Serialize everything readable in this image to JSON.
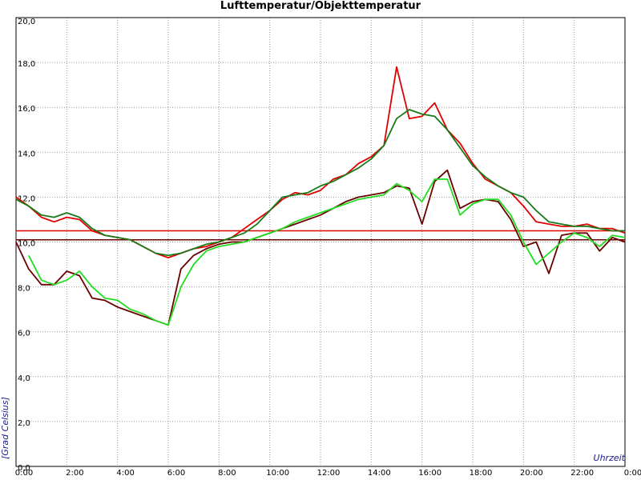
{
  "chart_data": {
    "type": "line",
    "title": "Lufttemperatur/Objekttemperatur",
    "y_label": "[Grad Celsius]",
    "x_label": "Uhrzeit",
    "xlim": [
      0,
      24
    ],
    "ylim": [
      0,
      20
    ],
    "grid": true,
    "xticks": [
      {
        "value": 0,
        "label": "0:00"
      },
      {
        "value": 2,
        "label": "2:00"
      },
      {
        "value": 4,
        "label": "4:00"
      },
      {
        "value": 6,
        "label": "6:00"
      },
      {
        "value": 8,
        "label": "8:00"
      },
      {
        "value": 10,
        "label": "10:00"
      },
      {
        "value": 12,
        "label": "12:00"
      },
      {
        "value": 14,
        "label": "14:00"
      },
      {
        "value": 16,
        "label": "16:00"
      },
      {
        "value": 18,
        "label": "18:00"
      },
      {
        "value": 20,
        "label": "20:00"
      },
      {
        "value": 22,
        "label": "22:00"
      },
      {
        "value": 24,
        "label": "0:00"
      }
    ],
    "yticks": [
      {
        "value": 0,
        "label": "0,0"
      },
      {
        "value": 2,
        "label": "2,0"
      },
      {
        "value": 4,
        "label": "4,0"
      },
      {
        "value": 6,
        "label": "6,0"
      },
      {
        "value": 8,
        "label": "8,0"
      },
      {
        "value": 10,
        "label": "10,0"
      },
      {
        "value": 12,
        "label": "12,0"
      },
      {
        "value": 14,
        "label": "14,0"
      },
      {
        "value": 16,
        "label": "16,0"
      },
      {
        "value": 18,
        "label": "18,0"
      },
      {
        "value": 20,
        "label": "20,0"
      }
    ],
    "x": [
      0,
      0.5,
      1,
      1.5,
      2,
      2.5,
      3,
      3.5,
      4,
      4.5,
      5,
      5.5,
      6,
      6.5,
      7,
      7.5,
      8,
      8.5,
      9,
      9.5,
      10,
      10.5,
      11,
      11.5,
      12,
      12.5,
      13,
      13.5,
      14,
      14.5,
      15,
      15.5,
      16,
      16.5,
      17,
      17.5,
      18,
      18.5,
      19,
      19.5,
      20,
      20.5,
      21,
      21.5,
      22,
      22.5,
      23,
      23.5,
      24
    ],
    "hlines": [
      {
        "value": 10.5,
        "color": "#e00000"
      },
      {
        "value": 10.1,
        "color": "#6b0000"
      }
    ],
    "series": [
      {
        "color": "#e00000",
        "values": [
          12.0,
          11.6,
          11.1,
          10.9,
          11.1,
          11.0,
          10.5,
          10.3,
          10.2,
          10.1,
          9.8,
          9.5,
          9.3,
          9.5,
          9.7,
          9.8,
          10.0,
          10.2,
          10.6,
          11.0,
          11.4,
          11.9,
          12.2,
          12.1,
          12.3,
          12.8,
          13.0,
          13.5,
          13.8,
          14.3,
          17.8,
          15.5,
          15.6,
          16.2,
          15.0,
          14.4,
          13.5,
          12.8,
          12.5,
          12.2,
          11.6,
          10.9,
          10.8,
          10.7,
          10.7,
          10.8,
          10.6,
          10.6,
          10.4
        ]
      },
      {
        "color": "#1a7a1a",
        "values": [
          11.9,
          11.6,
          11.2,
          11.1,
          11.3,
          11.1,
          10.6,
          10.3,
          10.2,
          10.1,
          9.8,
          9.5,
          9.4,
          9.5,
          9.7,
          9.9,
          10.0,
          10.2,
          10.4,
          10.8,
          11.4,
          12.0,
          12.1,
          12.2,
          12.5,
          12.7,
          13.0,
          13.3,
          13.7,
          14.3,
          15.5,
          15.9,
          15.7,
          15.6,
          15.0,
          14.2,
          13.4,
          12.9,
          12.5,
          12.2,
          12.0,
          11.4,
          10.9,
          10.8,
          10.7,
          10.7,
          10.6,
          10.5,
          10.5
        ]
      },
      {
        "color": "#6b0000",
        "values": [
          10.0,
          8.8,
          8.1,
          8.1,
          8.7,
          8.5,
          7.5,
          7.4,
          7.1,
          6.9,
          6.7,
          6.5,
          6.3,
          8.8,
          9.4,
          9.7,
          9.9,
          10.0,
          10.0,
          10.2,
          10.4,
          10.6,
          10.8,
          11.0,
          11.2,
          11.5,
          11.8,
          12.0,
          12.1,
          12.2,
          12.5,
          12.4,
          10.8,
          12.7,
          13.2,
          11.5,
          11.8,
          11.9,
          11.8,
          11.0,
          9.8,
          10.0,
          8.6,
          10.3,
          10.4,
          10.4,
          9.6,
          10.2,
          10.0
        ]
      },
      {
        "color": "#22dd22",
        "values": [
          null,
          9.4,
          8.3,
          8.1,
          8.3,
          8.7,
          8.0,
          7.5,
          7.4,
          7.0,
          6.8,
          6.5,
          6.3,
          8.0,
          9.0,
          9.6,
          9.8,
          9.9,
          10.0,
          10.2,
          10.4,
          10.6,
          10.9,
          11.1,
          11.3,
          11.5,
          11.7,
          11.9,
          12.0,
          12.1,
          12.6,
          12.3,
          11.8,
          12.8,
          12.8,
          11.2,
          11.7,
          11.9,
          11.9,
          11.2,
          10.0,
          9.0,
          9.5,
          10.0,
          10.4,
          10.2,
          9.8,
          10.3,
          10.2
        ]
      }
    ]
  }
}
